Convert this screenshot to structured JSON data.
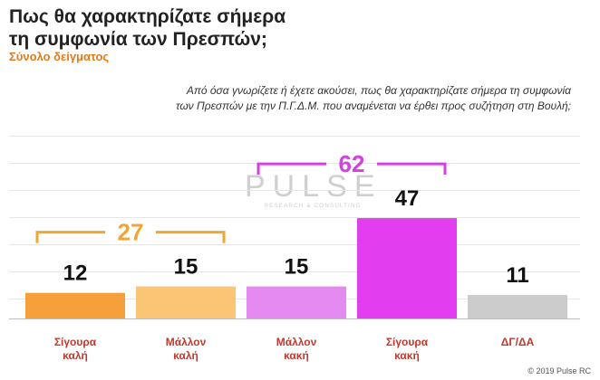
{
  "header": {
    "title_line1": "Πως θα χαρακτηρίζατε σήμερα",
    "title_line2": "τη συμφωνία των Πρεσπών;",
    "subtitle": "Σύνολο δείγματος",
    "question_line1": "Από όσα γνωρίζετε ή έχετε ακούσει, πως θα χαρακτηρίζατε σήμερα τη συμφωνία",
    "question_line2": "των Πρεσπών με την Π.Γ.Δ.Μ. που αναμένεται να έρθει προς συζήτηση στη Βουλή;"
  },
  "chart_data": {
    "type": "bar",
    "categories": [
      [
        "Σίγουρα",
        "καλή"
      ],
      [
        "Μάλλον",
        "καλή"
      ],
      [
        "Μάλλον",
        "κακή"
      ],
      [
        "Σίγουρα",
        "κακή"
      ],
      [
        "ΔΓ/ΔΑ"
      ]
    ],
    "values": [
      12,
      15,
      15,
      47,
      11
    ],
    "bar_colors": [
      "#f5a03a",
      "#fbc575",
      "#e58af0",
      "#e23ef0",
      "#cccccc"
    ],
    "ylim": [
      0,
      60
    ],
    "grid": true,
    "groups": [
      {
        "label": "27",
        "from": 0,
        "to": 1,
        "color": "#f0a534"
      },
      {
        "label": "62",
        "from": 2,
        "to": 3,
        "color": "#d63ee6"
      }
    ]
  },
  "watermark": {
    "main": "PULSE",
    "sub": "RESEARCH & CONSULTING"
  },
  "footer": {
    "copyright": "© 2019 Pulse RC"
  }
}
